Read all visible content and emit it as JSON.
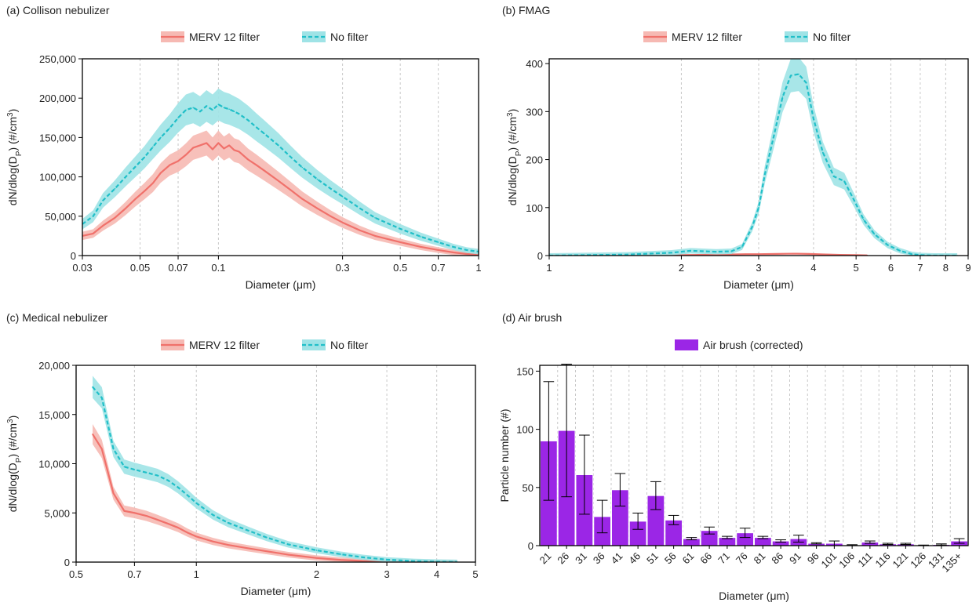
{
  "colors": {
    "merv": "#f0716b",
    "merv_band": "#f6b9b3",
    "nofilter": "#21bfc8",
    "nofilter_band": "#9fe3e6",
    "purple": "#9b26e6",
    "grid": "#c8c8c8"
  },
  "chart_data": [
    {
      "id": "a",
      "type": "line",
      "title": "(a) Collison nebulizer",
      "xlabel": "Diameter (μm)",
      "ylabel": "dN/dlog(Dp) (#/cm³)",
      "xscale": "log",
      "xlim": [
        0.03,
        1
      ],
      "ylim": [
        0,
        250000
      ],
      "xticks": [
        0.03,
        0.05,
        0.07,
        0.1,
        0.3,
        0.5,
        0.7,
        1
      ],
      "xtick_labels": [
        "0.03",
        "0.05",
        "0.07",
        "0.1",
        "0.3",
        "0.5",
        "0.7",
        "1"
      ],
      "yticks": [
        0,
        50000,
        100000,
        150000,
        200000,
        250000
      ],
      "ytick_labels": [
        "0",
        "50,000",
        "100,000",
        "150,000",
        "200,000",
        "250,000"
      ],
      "grid": "vertical-dashed",
      "legend": "top-center",
      "series": [
        {
          "name": "MERV 12 filter",
          "style": "solid",
          "band": 0.09,
          "x": [
            0.03,
            0.033,
            0.036,
            0.04,
            0.044,
            0.048,
            0.052,
            0.056,
            0.06,
            0.065,
            0.07,
            0.075,
            0.08,
            0.085,
            0.09,
            0.095,
            0.1,
            0.105,
            0.11,
            0.115,
            0.12,
            0.13,
            0.14,
            0.15,
            0.17,
            0.19,
            0.21,
            0.24,
            0.27,
            0.3,
            0.35,
            0.4,
            0.5,
            0.6,
            0.7,
            0.8,
            0.9,
            1.0
          ],
          "y": [
            25000,
            28000,
            38000,
            48000,
            60000,
            72000,
            82000,
            92000,
            105000,
            115000,
            120000,
            128000,
            137000,
            140000,
            143000,
            135000,
            143000,
            136000,
            140000,
            134000,
            132000,
            122000,
            115000,
            108000,
            95000,
            83000,
            72000,
            60000,
            50000,
            42000,
            32000,
            25000,
            17000,
            11000,
            7000,
            4000,
            2000,
            1000
          ]
        },
        {
          "name": "No filter",
          "style": "dashed",
          "band": 0.09,
          "x": [
            0.03,
            0.033,
            0.036,
            0.04,
            0.044,
            0.048,
            0.052,
            0.056,
            0.06,
            0.065,
            0.07,
            0.075,
            0.08,
            0.085,
            0.09,
            0.095,
            0.1,
            0.105,
            0.11,
            0.115,
            0.12,
            0.13,
            0.14,
            0.15,
            0.17,
            0.19,
            0.21,
            0.24,
            0.27,
            0.3,
            0.35,
            0.4,
            0.5,
            0.6,
            0.7,
            0.8,
            0.9,
            1.0
          ],
          "y": [
            40000,
            50000,
            70000,
            85000,
            100000,
            113000,
            125000,
            138000,
            150000,
            162000,
            175000,
            185000,
            188000,
            183000,
            190000,
            185000,
            192000,
            188000,
            186000,
            183000,
            180000,
            172000,
            163000,
            155000,
            140000,
            125000,
            112000,
            97000,
            85000,
            75000,
            60000,
            48000,
            34000,
            24000,
            17000,
            11000,
            7000,
            5000
          ]
        }
      ]
    },
    {
      "id": "b",
      "type": "line",
      "title": "(b) FMAG",
      "xlabel": "Diameter (μm)",
      "ylabel": "dN/dlog(Dp) (#/cm³)",
      "xscale": "log",
      "xlim": [
        1,
        9
      ],
      "ylim": [
        0,
        410
      ],
      "xticks": [
        1,
        2,
        3,
        4,
        5,
        6,
        7,
        8,
        9
      ],
      "xtick_labels": [
        "1",
        "2",
        "3",
        "4",
        "5",
        "6",
        "7",
        "8",
        "9"
      ],
      "yticks": [
        0,
        100,
        200,
        300,
        400
      ],
      "ytick_labels": [
        "0",
        "100",
        "200",
        "300",
        "400"
      ],
      "grid": "vertical-dashed",
      "legend": "top-center",
      "series": [
        {
          "name": "MERV 12 filter",
          "style": "solid",
          "band": 0.0,
          "x": [
            1,
            1.5,
            2,
            2.5,
            2.8,
            3.0,
            3.3,
            3.6,
            3.9,
            4.2,
            4.6,
            5.0,
            5.3
          ],
          "y": [
            0,
            1,
            1,
            2,
            3,
            3,
            3.5,
            4,
            3.5,
            2.5,
            1.5,
            1,
            0.5
          ]
        },
        {
          "name": "No filter",
          "style": "dashed",
          "band": 0.08,
          "x": [
            1,
            1.5,
            1.9,
            2.1,
            2.4,
            2.6,
            2.75,
            2.9,
            3.0,
            3.1,
            3.25,
            3.4,
            3.55,
            3.7,
            3.85,
            4.0,
            4.2,
            4.45,
            4.7,
            4.95,
            5.2,
            5.5,
            5.9,
            6.3,
            6.7,
            7.0,
            7.5,
            8.0,
            8.5
          ],
          "y": [
            0,
            2,
            6,
            10,
            8,
            9,
            18,
            60,
            100,
            170,
            250,
            330,
            375,
            378,
            360,
            285,
            215,
            165,
            155,
            115,
            75,
            45,
            22,
            10,
            3,
            1,
            0,
            0,
            0
          ]
        }
      ]
    },
    {
      "id": "c",
      "type": "line",
      "title": "(c) Medical nebulizer",
      "xlabel": "Diameter (μm)",
      "ylabel": "dN/dlog(Dp) (#/cm³)",
      "xscale": "log",
      "xlim": [
        0.5,
        5
      ],
      "ylim": [
        0,
        20000
      ],
      "xticks": [
        0.5,
        0.7,
        1,
        2,
        3,
        4,
        5
      ],
      "xtick_labels": [
        "0.5",
        "0.7",
        "1",
        "2",
        "3",
        "4",
        "5"
      ],
      "yticks": [
        0,
        5000,
        10000,
        15000,
        20000
      ],
      "ytick_labels": [
        "0",
        "5,000",
        "10,000",
        "15,000",
        "20,000"
      ],
      "grid": "vertical-dashed",
      "legend": "top-center",
      "series": [
        {
          "name": "MERV 12 filter",
          "style": "solid",
          "band": 0.06,
          "x": [
            0.55,
            0.58,
            0.62,
            0.66,
            0.7,
            0.75,
            0.8,
            0.85,
            0.9,
            0.95,
            1.0,
            1.1,
            1.2,
            1.35,
            1.5,
            1.7,
            2.0,
            2.3,
            2.6,
            3.0,
            3.5,
            4.0,
            4.5
          ],
          "y": [
            13000,
            11500,
            7000,
            5200,
            5000,
            4700,
            4300,
            3900,
            3500,
            3000,
            2600,
            2100,
            1750,
            1400,
            1100,
            750,
            420,
            220,
            120,
            60,
            20,
            5,
            0
          ]
        },
        {
          "name": "No filter",
          "style": "dashed",
          "band": 0.05,
          "x": [
            0.55,
            0.58,
            0.62,
            0.66,
            0.7,
            0.75,
            0.8,
            0.85,
            0.9,
            0.95,
            1.0,
            1.1,
            1.2,
            1.35,
            1.5,
            1.7,
            2.0,
            2.3,
            2.6,
            3.0,
            3.5,
            4.0,
            4.5
          ],
          "y": [
            17800,
            16700,
            11500,
            9700,
            9400,
            9100,
            8800,
            8300,
            7600,
            6800,
            6000,
            4800,
            4000,
            3200,
            2500,
            1800,
            1200,
            800,
            500,
            250,
            100,
            40,
            10
          ]
        }
      ]
    },
    {
      "id": "d",
      "type": "bar",
      "title": "(d) Air brush",
      "xlabel": "Diameter (μm)",
      "ylabel": "Particle number (#)",
      "ylim": [
        0,
        155
      ],
      "yticks": [
        0,
        50,
        100,
        150
      ],
      "ytick_labels": [
        "0",
        "50",
        "100",
        "150"
      ],
      "grid": "vertical-dashed",
      "legend": "top-center",
      "categories": [
        "21",
        "26",
        "31",
        "36",
        "41",
        "46",
        "51",
        "56",
        "61",
        "66",
        "71",
        "76",
        "81",
        "86",
        "91",
        "96",
        "101",
        "106",
        "111",
        "116",
        "121",
        "126",
        "131",
        "135+"
      ],
      "series": [
        {
          "name": "Air brush (corrected)",
          "values": [
            90,
            99,
            61,
            25,
            48,
            21,
            43,
            22,
            6,
            13,
            7,
            11,
            7,
            4,
            6,
            2,
            2,
            0.5,
            3,
            1.5,
            1.5,
            0.3,
            1,
            4
          ],
          "errors": [
            51,
            57,
            34,
            14,
            14,
            7,
            12,
            4,
            1,
            3,
            1,
            4,
            1,
            1,
            3,
            0.5,
            2,
            0.3,
            1,
            0.5,
            0.5,
            0.2,
            0.5,
            2
          ]
        }
      ]
    }
  ]
}
